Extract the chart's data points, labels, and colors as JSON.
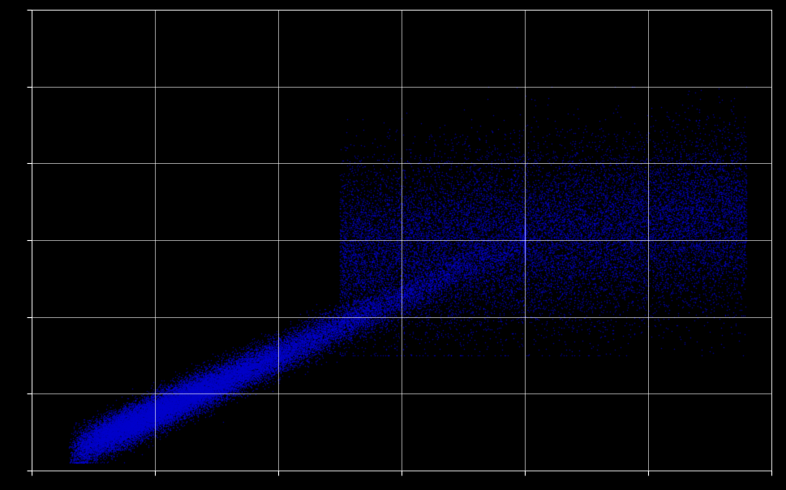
{
  "background_color": "#000000",
  "axes_bg_color": "#000000",
  "grid_color": "#ffffff",
  "dot_color": "#0000cd",
  "dot_alpha": 0.5,
  "dot_size": 1.5,
  "xlim": [
    0,
    6
  ],
  "ylim": [
    0,
    6
  ],
  "n_points": 50000,
  "seed": 42,
  "figsize": [
    9.7,
    6.04
  ],
  "dpi": 100,
  "grid_linewidth": 0.6,
  "grid_alpha": 0.7
}
